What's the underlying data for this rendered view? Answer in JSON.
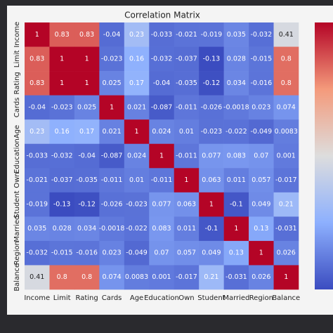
{
  "chart_data": {
    "type": "heatmap",
    "title": "Correlation Matrix",
    "colormap": "coolwarm",
    "x": [
      "Income",
      "Limit",
      "Rating",
      "Cards",
      "Age",
      "Education",
      "Own",
      "Student",
      "Married",
      "Region",
      "Balance"
    ],
    "y": [
      "Income",
      "Limit",
      "Rating",
      "Cards",
      "Age",
      "Education",
      "Own",
      "Student",
      "Married",
      "Region",
      "Balance"
    ],
    "values": [
      [
        1,
        0.83,
        0.83,
        -0.04,
        0.23,
        -0.033,
        -0.021,
        -0.019,
        0.035,
        -0.032,
        0.41
      ],
      [
        0.83,
        1,
        1,
        -0.023,
        0.16,
        -0.032,
        -0.037,
        -0.13,
        0.028,
        -0.015,
        0.8
      ],
      [
        0.83,
        1,
        1,
        0.025,
        0.17,
        -0.04,
        -0.035,
        -0.12,
        0.034,
        -0.016,
        0.8
      ],
      [
        -0.04,
        -0.023,
        0.025,
        1,
        0.021,
        -0.087,
        -0.011,
        -0.026,
        -0.0018,
        0.023,
        0.074
      ],
      [
        0.23,
        0.16,
        0.17,
        0.021,
        1,
        0.024,
        0.01,
        -0.023,
        -0.022,
        -0.049,
        0.0083
      ],
      [
        -0.033,
        -0.032,
        -0.04,
        -0.087,
        0.024,
        1,
        -0.011,
        0.077,
        0.083,
        0.07,
        0.001
      ],
      [
        -0.021,
        -0.037,
        -0.035,
        -0.011,
        0.01,
        -0.011,
        1,
        0.063,
        0.011,
        0.057,
        -0.017
      ],
      [
        -0.019,
        -0.13,
        -0.12,
        -0.026,
        -0.023,
        0.077,
        0.063,
        1,
        -0.1,
        0.049,
        0.21
      ],
      [
        0.035,
        0.028,
        0.034,
        -0.0018,
        -0.022,
        0.083,
        0.011,
        -0.1,
        1,
        0.13,
        -0.031
      ],
      [
        -0.032,
        -0.015,
        -0.016,
        0.023,
        -0.049,
        0.07,
        0.057,
        0.049,
        0.13,
        1,
        0.026
      ],
      [
        0.41,
        0.8,
        0.8,
        0.074,
        0.0083,
        0.001,
        -0.017,
        0.21,
        -0.031,
        0.026,
        1
      ]
    ]
  }
}
